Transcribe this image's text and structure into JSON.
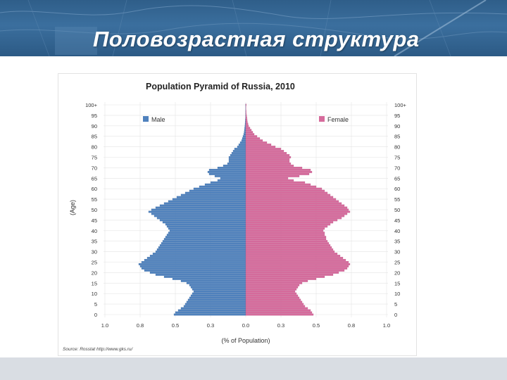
{
  "slide": {
    "title": "Половозрастная структура"
  },
  "chart_data": {
    "type": "bar",
    "title": "Population Pyramid of Russia, 2010",
    "xlabel": "(% of Population)",
    "ylabel": "(Age)",
    "source": "Source: Rosstat  http://www.gks.ru/",
    "xlim": [
      -1.0,
      1.0
    ],
    "x_tick_labels": [
      "1.0",
      "0.8",
      "0.5",
      "0.3",
      "0.0",
      "0.3",
      "0.5",
      "0.8",
      "1.0"
    ],
    "age_tick_labels": [
      "0",
      "5",
      "10",
      "15",
      "20",
      "25",
      "30",
      "35",
      "40",
      "45",
      "50",
      "55",
      "60",
      "65",
      "70",
      "75",
      "80",
      "85",
      "90",
      "95",
      "100+"
    ],
    "legend_position": "top",
    "grid": true,
    "ages": [
      0,
      1,
      2,
      3,
      4,
      5,
      6,
      7,
      8,
      9,
      10,
      11,
      12,
      13,
      14,
      15,
      16,
      17,
      18,
      19,
      20,
      21,
      22,
      23,
      24,
      25,
      26,
      27,
      28,
      29,
      30,
      31,
      32,
      33,
      34,
      35,
      36,
      37,
      38,
      39,
      40,
      41,
      42,
      43,
      44,
      45,
      46,
      47,
      48,
      49,
      50,
      51,
      52,
      53,
      54,
      55,
      56,
      57,
      58,
      59,
      60,
      61,
      62,
      63,
      64,
      65,
      66,
      67,
      68,
      69,
      70,
      71,
      72,
      73,
      74,
      75,
      76,
      77,
      78,
      79,
      80,
      81,
      82,
      83,
      84,
      85,
      86,
      87,
      88,
      89,
      90,
      91,
      92,
      93,
      94,
      95,
      96,
      97,
      98,
      99,
      100
    ],
    "series": [
      {
        "name": "Male",
        "color": "#4f81bd",
        "values": [
          0.51,
          0.5,
          0.48,
          0.46,
          0.44,
          0.43,
          0.42,
          0.41,
          0.4,
          0.39,
          0.38,
          0.37,
          0.38,
          0.39,
          0.4,
          0.42,
          0.46,
          0.52,
          0.58,
          0.64,
          0.68,
          0.72,
          0.74,
          0.75,
          0.76,
          0.74,
          0.72,
          0.7,
          0.68,
          0.66,
          0.64,
          0.63,
          0.62,
          0.61,
          0.6,
          0.59,
          0.58,
          0.57,
          0.56,
          0.55,
          0.54,
          0.55,
          0.56,
          0.57,
          0.59,
          0.61,
          0.63,
          0.65,
          0.67,
          0.69,
          0.67,
          0.64,
          0.61,
          0.58,
          0.55,
          0.52,
          0.49,
          0.46,
          0.43,
          0.4,
          0.37,
          0.33,
          0.29,
          0.25,
          0.2,
          0.18,
          0.22,
          0.26,
          0.27,
          0.26,
          0.2,
          0.16,
          0.13,
          0.12,
          0.12,
          0.12,
          0.11,
          0.1,
          0.09,
          0.08,
          0.06,
          0.05,
          0.04,
          0.03,
          0.025,
          0.02,
          0.015,
          0.012,
          0.01,
          0.008,
          0.006,
          0.005,
          0.004,
          0.003,
          0.002,
          0.002,
          0.001,
          0.001,
          0.001,
          0.001,
          0.001
        ]
      },
      {
        "name": "Female",
        "color": "#d66b9c",
        "values": [
          0.48,
          0.47,
          0.46,
          0.44,
          0.42,
          0.41,
          0.4,
          0.39,
          0.38,
          0.37,
          0.36,
          0.35,
          0.36,
          0.37,
          0.38,
          0.4,
          0.44,
          0.5,
          0.56,
          0.62,
          0.66,
          0.7,
          0.72,
          0.73,
          0.74,
          0.73,
          0.71,
          0.69,
          0.67,
          0.65,
          0.63,
          0.62,
          0.61,
          0.6,
          0.59,
          0.58,
          0.57,
          0.57,
          0.56,
          0.56,
          0.55,
          0.56,
          0.58,
          0.6,
          0.62,
          0.65,
          0.68,
          0.7,
          0.72,
          0.74,
          0.73,
          0.72,
          0.7,
          0.68,
          0.66,
          0.64,
          0.62,
          0.6,
          0.58,
          0.56,
          0.54,
          0.5,
          0.46,
          0.42,
          0.34,
          0.3,
          0.38,
          0.45,
          0.47,
          0.46,
          0.4,
          0.34,
          0.32,
          0.31,
          0.31,
          0.32,
          0.31,
          0.29,
          0.27,
          0.25,
          0.21,
          0.18,
          0.15,
          0.12,
          0.1,
          0.08,
          0.06,
          0.05,
          0.04,
          0.03,
          0.02,
          0.016,
          0.012,
          0.01,
          0.008,
          0.006,
          0.004,
          0.003,
          0.002,
          0.002,
          0.004
        ]
      }
    ]
  }
}
